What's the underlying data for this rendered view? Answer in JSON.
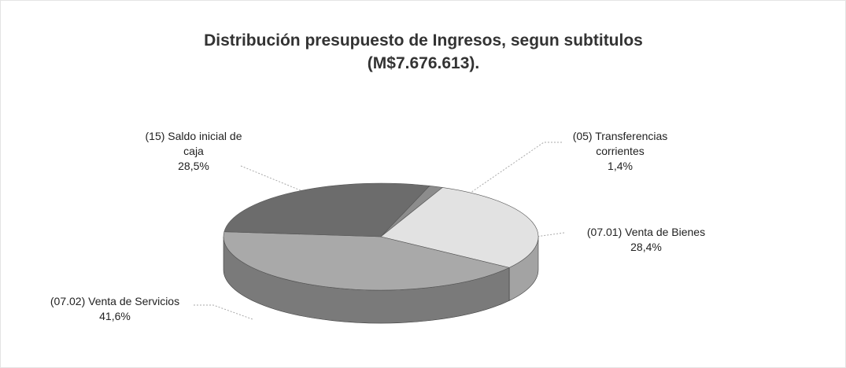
{
  "chart_data": {
    "type": "pie",
    "title": "Distribución presupuesto de Ingresos, segun subtitulos (M$7.676.613).",
    "categories": [
      "(05) Transferencias corrientes",
      "(07.01) Venta de Bienes",
      "(07.02) Venta de Servicios",
      "(15) Saldo inicial de caja"
    ],
    "values": [
      1.4,
      28.4,
      41.6,
      28.5
    ],
    "value_labels": [
      "1,4%",
      "28,4%",
      "41,6%",
      "28,5%"
    ],
    "colors": [
      "#8c8c8c",
      "#e2e2e2",
      "#a9a9a9",
      "#6c6c6c"
    ]
  }
}
